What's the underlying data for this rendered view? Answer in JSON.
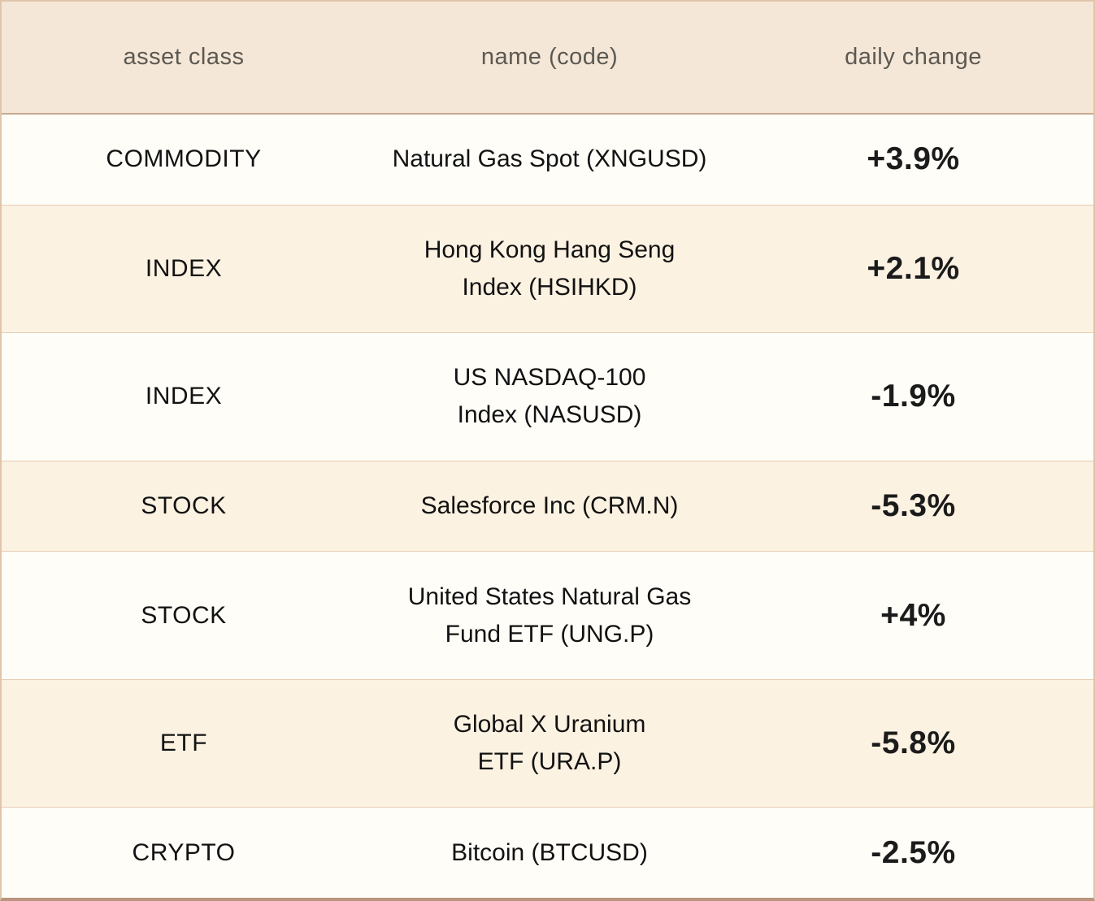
{
  "table": {
    "headers": {
      "asset_class": "asset class",
      "name": "name (code)",
      "daily_change": "daily change"
    },
    "rows": [
      {
        "asset_class": "COMMODITY",
        "name": "Natural Gas Spot (XNGUSD)",
        "change": "+3.9%"
      },
      {
        "asset_class": "INDEX",
        "name": "Hong Kong Hang Seng\nIndex (HSIHKD)",
        "change": "+2.1%"
      },
      {
        "asset_class": "INDEX",
        "name": "US NASDAQ-100\nIndex (NASUSD)",
        "change": "-1.9%"
      },
      {
        "asset_class": "STOCK",
        "name": "Salesforce Inc (CRM.N)",
        "change": "-5.3%"
      },
      {
        "asset_class": "STOCK",
        "name": "United States Natural Gas\nFund ETF (UNG.P)",
        "change": "+4%"
      },
      {
        "asset_class": "ETF",
        "name": "Global X Uranium\nETF (URA.P)",
        "change": "-5.8%"
      },
      {
        "asset_class": "CRYPTO",
        "name": "Bitcoin (BTCUSD)",
        "change": "-2.5%"
      }
    ],
    "colors": {
      "header_bg": "#f5e7d7",
      "row_cream_bg": "#fcf2e2",
      "row_white_bg": "#fffdf8",
      "header_text": "#5c5952",
      "cell_text": "#121212",
      "outer_border": "#e0c5ab",
      "bottom_border": "#ba947f",
      "header_border": "#c7a98f",
      "row_divider": "#e6ccb2"
    }
  }
}
